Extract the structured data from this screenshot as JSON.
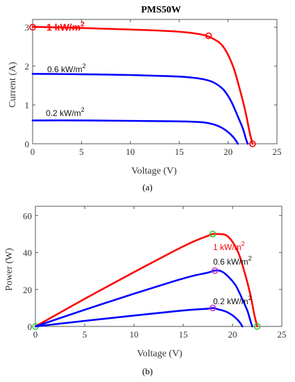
{
  "chart_data": [
    {
      "type": "line",
      "title": "PMS50W",
      "xlabel": "Voltage (V)",
      "ylabel": "Current (A)",
      "xlim": [
        0,
        25
      ],
      "ylim": [
        0,
        3.2
      ],
      "xticks": [
        0,
        5,
        10,
        15,
        20,
        25
      ],
      "yticks": [
        0,
        1,
        2,
        3
      ],
      "grid": false,
      "series": [
        {
          "name": "1 kW/m",
          "superscript": "2",
          "color": "#ff0000",
          "x": [
            0,
            5,
            10,
            14,
            16,
            17.5,
            18.5,
            19.5,
            20.5,
            21.2,
            21.8,
            22.2,
            22.5
          ],
          "y": [
            3.01,
            2.98,
            2.94,
            2.9,
            2.86,
            2.8,
            2.7,
            2.5,
            2.0,
            1.4,
            0.8,
            0.3,
            0
          ],
          "markers": [
            {
              "x": 0,
              "y": 3.0
            },
            {
              "x": 18.0,
              "y": 2.78
            },
            {
              "x": 22.5,
              "y": 0
            }
          ],
          "marker_color": "#ff0000"
        },
        {
          "name": "0.6 kW/m",
          "superscript": "2",
          "color": "#0000ff",
          "x": [
            0,
            5,
            10,
            14,
            16,
            17.5,
            18.5,
            19.5,
            20.3,
            21.0,
            21.5,
            21.8,
            22.0
          ],
          "y": [
            1.8,
            1.79,
            1.77,
            1.74,
            1.71,
            1.66,
            1.58,
            1.4,
            1.1,
            0.7,
            0.4,
            0.15,
            0
          ]
        },
        {
          "name": "0.2 kW/m",
          "superscript": "2",
          "color": "#0000ff",
          "x": [
            0,
            5,
            10,
            14,
            16,
            17.5,
            18.5,
            19.3,
            20.0,
            20.5,
            20.8,
            21.0
          ],
          "y": [
            0.6,
            0.6,
            0.59,
            0.58,
            0.57,
            0.55,
            0.5,
            0.42,
            0.3,
            0.18,
            0.08,
            0
          ]
        }
      ]
    },
    {
      "type": "line",
      "title": "",
      "xlabel": "Voltage (V)",
      "ylabel": "Power (W)",
      "xlim": [
        0,
        25
      ],
      "ylim": [
        0,
        65
      ],
      "xticks": [
        0,
        5,
        10,
        15,
        20,
        25
      ],
      "yticks": [
        0,
        20,
        40,
        60
      ],
      "grid": false,
      "series": [
        {
          "name": "1 kW/m",
          "superscript": "2",
          "color": "#ff0000",
          "x": [
            0,
            5,
            10,
            14,
            16,
            17.5,
            18.0,
            18.5,
            19.5,
            20.5,
            21.2,
            21.8,
            22.2,
            22.5
          ],
          "y": [
            0,
            14.9,
            29.4,
            40.6,
            45.8,
            49.0,
            50.0,
            50.0,
            48.8,
            41.0,
            29.7,
            17.4,
            6.7,
            0
          ],
          "markers": [
            {
              "x": 18.0,
              "y": 50.0
            },
            {
              "x": 0,
              "y": 0
            },
            {
              "x": 22.5,
              "y": 0
            }
          ],
          "marker_color": "#33cc33"
        },
        {
          "name": "0.6 kW/m",
          "superscript": "2",
          "color": "#0000ff",
          "x": [
            0,
            5,
            10,
            14,
            16,
            17.5,
            18.2,
            18.8,
            19.5,
            20.3,
            21.0,
            21.5,
            21.8,
            22.0
          ],
          "y": [
            0,
            9.0,
            17.7,
            24.4,
            27.4,
            29.1,
            30.2,
            30.0,
            27.3,
            22.3,
            14.7,
            8.6,
            3.3,
            0
          ],
          "markers": [
            {
              "x": 18.2,
              "y": 30.2
            }
          ],
          "marker_color": "#cc33cc"
        },
        {
          "name": "0.2 kW/m",
          "superscript": "2",
          "color": "#0000ff",
          "x": [
            0,
            5,
            10,
            14,
            16,
            17.5,
            18.0,
            18.5,
            19.3,
            20.0,
            20.5,
            20.8,
            21.0
          ],
          "y": [
            0,
            3.0,
            5.9,
            8.1,
            9.1,
            9.6,
            10.0,
            9.3,
            8.1,
            6.0,
            3.7,
            1.7,
            0
          ],
          "markers": [
            {
              "x": 18.0,
              "y": 10.0
            }
          ],
          "marker_color": "#cc33cc"
        }
      ]
    }
  ],
  "captions": [
    "(a)",
    "(b)"
  ]
}
